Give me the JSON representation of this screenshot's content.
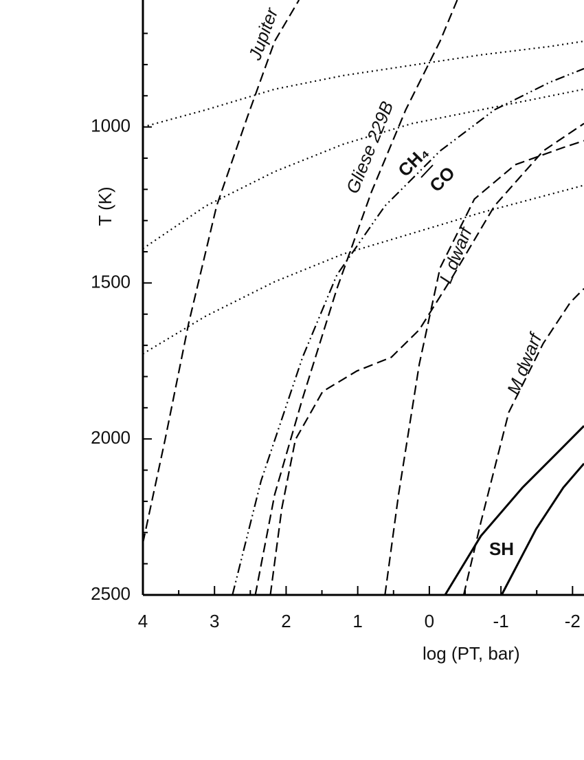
{
  "chart_data": {
    "type": "line",
    "x_label": "log (PT, bar)",
    "y_label": "T (K)",
    "xlim": [
      4,
      -2.16
    ],
    "ylim": [
      593,
      2500
    ],
    "y_inverted": true,
    "xticks": [
      4,
      3,
      2,
      1,
      0,
      -1,
      -2
    ],
    "xminorticks": [
      3.5,
      2.5,
      1.5,
      0.5,
      -0.5,
      -1.5
    ],
    "yticks": [
      1000,
      1500,
      2000,
      2500
    ],
    "yminorticks": [
      700,
      800,
      900,
      1100,
      1200,
      1300,
      1400,
      1600,
      1700,
      1800,
      1900,
      2100,
      2200,
      2300,
      2400
    ],
    "annotations": [
      "Jupiter",
      "Gliese 229B",
      "CH₄",
      "CO",
      "L dwarf",
      "M dwarf",
      "SH"
    ],
    "series": [
      {
        "style": "dashed",
        "color": "#000000",
        "x": [
          4,
          3.69,
          3.36,
          2.97,
          2.54,
          2.16,
          1.82
        ],
        "values": [
          2333,
          2002,
          1628,
          1253,
          967,
          725,
          593
        ]
      },
      {
        "style": "dashed",
        "color": "#000000",
        "x": [
          2.43,
          2.16,
          1.77,
          1.29,
          0.81,
          0.33,
          -0.15,
          -0.39
        ],
        "values": [
          2500,
          2178,
          1870,
          1518,
          1209,
          945,
          725,
          593
        ]
      },
      {
        "style": "dashed",
        "color": "#000000",
        "x": [
          2.22,
          2.06,
          1.87,
          1.49,
          1.01,
          0.53,
          0.14,
          -0.34,
          -0.91,
          -1.59,
          -2.16
        ],
        "values": [
          2500,
          2222,
          2002,
          1848,
          1782,
          1738,
          1650,
          1474,
          1253,
          1077,
          989
        ]
      },
      {
        "style": "dashed",
        "color": "#000000",
        "x": [
          0.62,
          0.43,
          0.14,
          -0.15,
          -0.63,
          -1.2,
          -1.87,
          -2.16
        ],
        "values": [
          2500,
          2178,
          1760,
          1452,
          1231,
          1121,
          1066,
          1044
        ]
      },
      {
        "style": "dashed",
        "color": "#000000",
        "x": [
          -0.48,
          -0.72,
          -1.11,
          -1.59,
          -1.97,
          -2.16
        ],
        "values": [
          2500,
          2267,
          1914,
          1694,
          1562,
          1518
        ]
      },
      {
        "style": "dashdot",
        "color": "#000000",
        "x": [
          2.75,
          2.35,
          1.77,
          1.29,
          0.62,
          -0.15,
          -0.91,
          -1.68,
          -2.16
        ],
        "values": [
          2500,
          2134,
          1738,
          1474,
          1253,
          1077,
          945,
          857,
          813
        ]
      },
      {
        "style": "dotted",
        "color": "#000000",
        "x": [
          4,
          3.12,
          2.16,
          1.2,
          0.24,
          -0.72,
          -1.68,
          -2.16
        ],
        "values": [
          1000,
          945,
          879,
          835,
          802,
          769,
          742,
          725
        ]
      },
      {
        "style": "dotted",
        "color": "#000000",
        "x": [
          4,
          3.12,
          2.16,
          1.2,
          0.24,
          -0.72,
          -2.16
        ],
        "values": [
          1390,
          1253,
          1143,
          1055,
          989,
          945,
          879
        ]
      },
      {
        "style": "dotted",
        "color": "#000000",
        "x": [
          4,
          3.12,
          2.16,
          1.2,
          0.24,
          -0.72,
          -2.16
        ],
        "values": [
          1727,
          1606,
          1496,
          1407,
          1341,
          1275,
          1187
        ]
      },
      {
        "style": "solid",
        "color": "#000000",
        "x": [
          -0.22,
          -0.72,
          -1.3,
          -1.78,
          -2.16
        ],
        "values": [
          2500,
          2311,
          2156,
          2046,
          1958
        ]
      },
      {
        "style": "solid",
        "color": "#000000",
        "x": [
          -1.01,
          -1.49,
          -1.87,
          -2.16
        ],
        "values": [
          2500,
          2289,
          2156,
          2079
        ]
      }
    ]
  }
}
